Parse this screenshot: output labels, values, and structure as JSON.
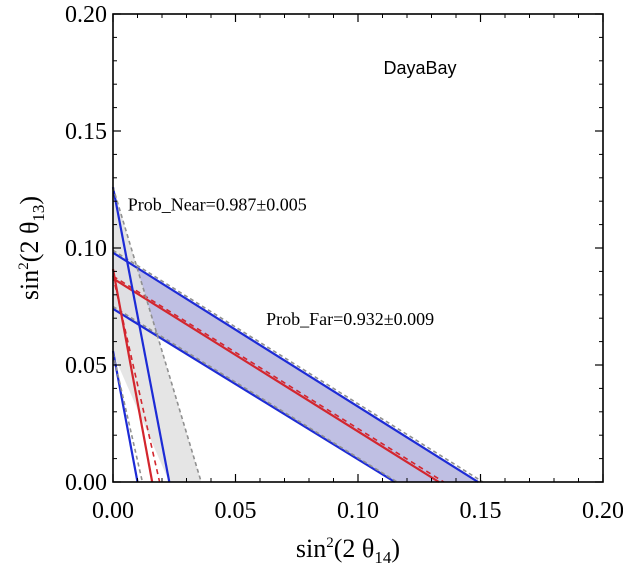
{
  "chart_data": {
    "type": "line",
    "title": "DayaBay",
    "xlabel": {
      "prefix": "sin",
      "sup": "2",
      "mid": "(2 θ",
      "sub": "14",
      "end": ")"
    },
    "ylabel": {
      "prefix": "sin",
      "sup": "2",
      "mid": "(2 θ",
      "sub": "13",
      "end": ")"
    },
    "xlim": [
      0,
      0.2
    ],
    "ylim": [
      0,
      0.2
    ],
    "x_ticks": [
      0,
      0.05,
      0.1,
      0.15,
      0.2
    ],
    "x_tick_labels": [
      "0.00",
      "0.05",
      "0.10",
      "0.15",
      "0.20"
    ],
    "y_ticks": [
      0,
      0.05,
      0.1,
      0.15,
      0.2
    ],
    "y_tick_labels": [
      "0.00",
      "0.05",
      "0.10",
      "0.15",
      "0.20"
    ],
    "grid": false,
    "annotations": [
      {
        "text": "Prob_Near=0.987±0.005",
        "x": 0.006,
        "y": 0.116
      },
      {
        "text": "Prob_Far=0.932±0.009",
        "x": 0.0625,
        "y": 0.067
      }
    ],
    "bands": [
      {
        "name": "Prob_Far band (blue)",
        "fill": "#b8b8e0",
        "polygon": [
          [
            0,
            0.098
          ],
          [
            0.15,
            0
          ],
          [
            0.115,
            0
          ],
          [
            0,
            0.074
          ]
        ]
      },
      {
        "name": "Prob_Near band (grey)",
        "fill": "#e2e2e2",
        "polygon": [
          [
            0,
            0.126
          ],
          [
            0.036,
            0
          ],
          [
            0.023,
            0
          ],
          [
            0,
            0.055
          ]
        ]
      }
    ],
    "series": [
      {
        "name": "Far central (red)",
        "color": "#d3262e",
        "dash": false,
        "x": [
          0,
          0.133
        ],
        "y": [
          0.087,
          0
        ]
      },
      {
        "name": "Far central alt (red dashed)",
        "color": "#d3262e",
        "dash": true,
        "x": [
          0,
          0.135
        ],
        "y": [
          0.088,
          0
        ]
      },
      {
        "name": "Far upper (blue)",
        "color": "#1d2bd6",
        "dash": false,
        "x": [
          0,
          0.149
        ],
        "y": [
          0.098,
          0
        ]
      },
      {
        "name": "Far lower (blue)",
        "color": "#1d2bd6",
        "dash": false,
        "x": [
          0,
          0.115
        ],
        "y": [
          0.074,
          0
        ]
      },
      {
        "name": "Far upper alt (grey dashed)",
        "color": "#909090",
        "dash": true,
        "x": [
          0,
          0.151
        ],
        "y": [
          0.099,
          0
        ]
      },
      {
        "name": "Far lower alt (grey dashed)",
        "color": "#909090",
        "dash": true,
        "x": [
          0,
          0.116
        ],
        "y": [
          0.075,
          0
        ]
      },
      {
        "name": "Near central (red)",
        "color": "#d3262e",
        "dash": false,
        "x": [
          0,
          0.016
        ],
        "y": [
          0.091,
          0
        ]
      },
      {
        "name": "Near central alt (red dashed)",
        "color": "#d3262e",
        "dash": true,
        "x": [
          0,
          0.019
        ],
        "y": [
          0.088,
          0
        ]
      },
      {
        "name": "Near upper (blue)",
        "color": "#1d2bd6",
        "dash": false,
        "x": [
          0,
          0.023
        ],
        "y": [
          0.126,
          0
        ]
      },
      {
        "name": "Near lower (blue)",
        "color": "#1d2bd6",
        "dash": false,
        "x": [
          0,
          0.01
        ],
        "y": [
          0.056,
          0
        ]
      },
      {
        "name": "Near upper alt (grey dashed)",
        "color": "#909090",
        "dash": true,
        "x": [
          0,
          0.036
        ],
        "y": [
          0.126,
          0
        ]
      },
      {
        "name": "Near lower alt (grey dashed)",
        "color": "#909090",
        "dash": true,
        "x": [
          0,
          0.012
        ],
        "y": [
          0.055,
          0
        ]
      }
    ]
  }
}
